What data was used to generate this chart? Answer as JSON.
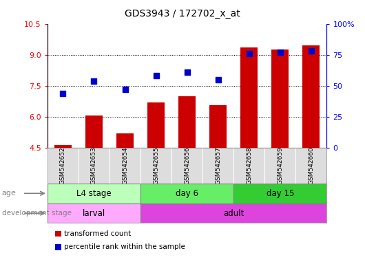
{
  "title": "GDS3943 / 172702_x_at",
  "samples": [
    "GSM542652",
    "GSM542653",
    "GSM542654",
    "GSM542655",
    "GSM542656",
    "GSM542657",
    "GSM542658",
    "GSM542659",
    "GSM542660"
  ],
  "transformed_count": [
    4.65,
    6.05,
    5.2,
    6.7,
    7.0,
    6.55,
    9.35,
    9.25,
    9.45
  ],
  "percentile_rank": [
    44,
    54,
    47,
    58,
    61,
    55,
    76,
    77,
    78
  ],
  "ylim_left": [
    4.5,
    10.5
  ],
  "ylim_right": [
    0,
    100
  ],
  "yticks_left": [
    4.5,
    6.0,
    7.5,
    9.0,
    10.5
  ],
  "yticks_right": [
    0,
    25,
    50,
    75,
    100
  ],
  "ytick_labels_right": [
    "0",
    "25",
    "50",
    "75",
    "100%"
  ],
  "bar_color": "#cc0000",
  "scatter_color": "#0000cc",
  "age_groups": [
    {
      "label": "L4 stage",
      "start": 0,
      "end": 3,
      "color": "#bbffbb"
    },
    {
      "label": "day 6",
      "start": 3,
      "end": 6,
      "color": "#66ee66"
    },
    {
      "label": "day 15",
      "start": 6,
      "end": 9,
      "color": "#33cc33"
    }
  ],
  "dev_groups": [
    {
      "label": "larval",
      "start": 0,
      "end": 3,
      "color": "#ffaaff"
    },
    {
      "label": "adult",
      "start": 3,
      "end": 9,
      "color": "#dd44dd"
    }
  ],
  "bar_bottom": 4.5,
  "grid_yticks": [
    6.0,
    7.5,
    9.0
  ]
}
